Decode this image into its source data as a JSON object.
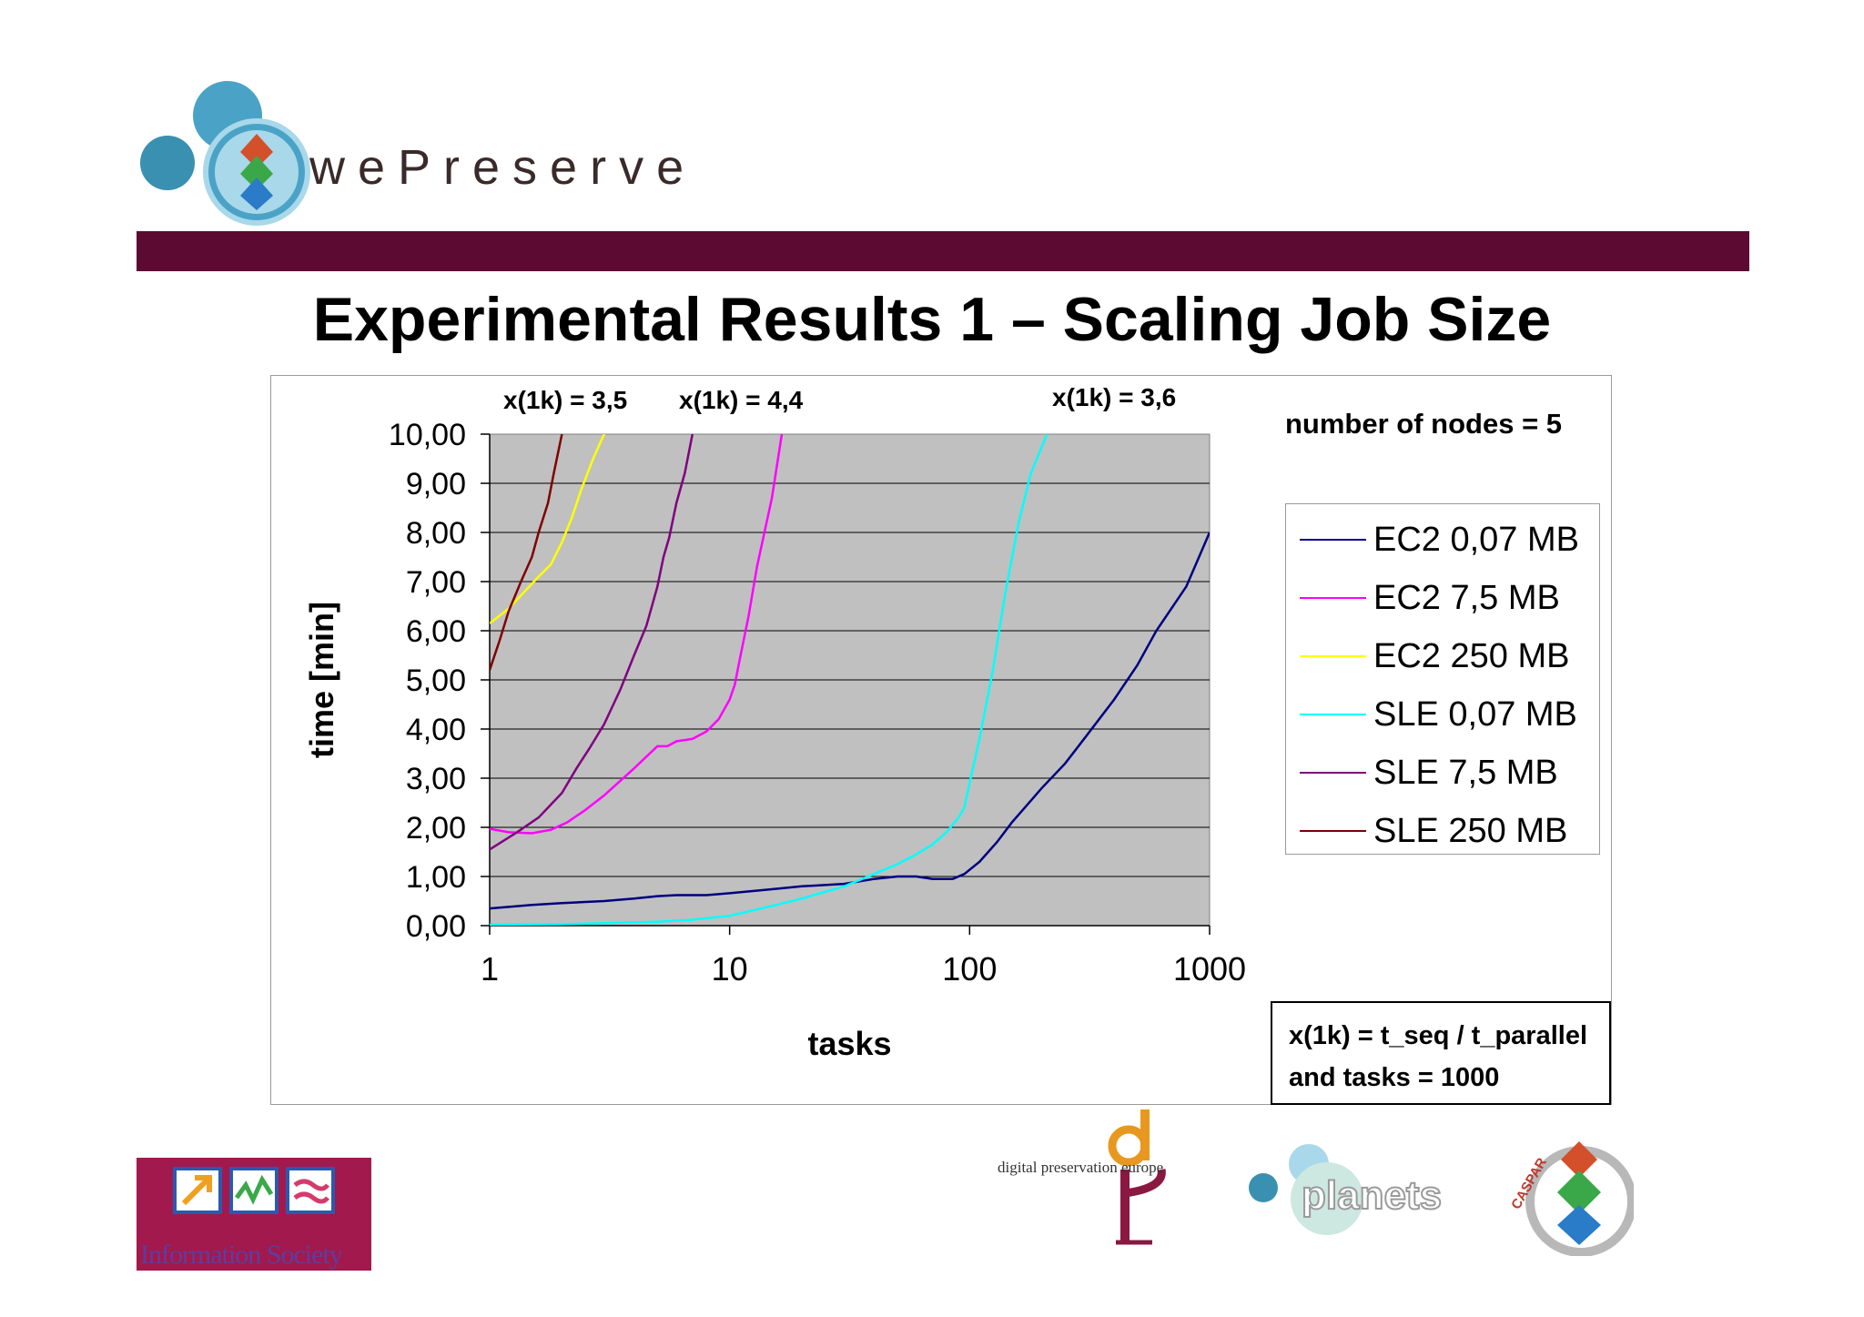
{
  "header": {
    "logo_text": "wePreserve",
    "title": "Experimental Results 1 – Scaling Job Size"
  },
  "annotations": {
    "x1k_a": "x(1k) = 3,5",
    "x1k_b": "x(1k) = 4,4",
    "x1k_c": "x(1k) = 3,6",
    "nodes": "number of nodes = 5",
    "formula_line1": "x(1k) = t_seq / t_parallel",
    "formula_line2": "and tasks = 1000"
  },
  "footer": {
    "eu_text": "Information Society",
    "dpe_text": "digital preservation europe",
    "planets_text": "planets",
    "caspar_text": "CASPAR"
  },
  "colors": {
    "header_bar": "#5c0a32",
    "plot_bg": "#c0c0c0"
  },
  "chart_data": {
    "type": "line",
    "title": "",
    "xlabel": "tasks",
    "ylabel": "time [min]",
    "x_scale": "log",
    "xlim": [
      1,
      1000
    ],
    "ylim": [
      0,
      10
    ],
    "x_ticks": [
      "1",
      "10",
      "100",
      "1000"
    ],
    "y_ticks": [
      "0,00",
      "1,00",
      "2,00",
      "3,00",
      "4,00",
      "5,00",
      "6,00",
      "7,00",
      "8,00",
      "9,00",
      "10,00"
    ],
    "grid": true,
    "legend_position": "right",
    "series": [
      {
        "name": "EC2 0,07 MB",
        "color": "#000080",
        "points": [
          [
            1,
            0.35
          ],
          [
            1.5,
            0.42
          ],
          [
            2,
            0.46
          ],
          [
            3,
            0.5
          ],
          [
            4,
            0.55
          ],
          [
            5,
            0.6
          ],
          [
            6,
            0.62
          ],
          [
            8,
            0.62
          ],
          [
            10,
            0.66
          ],
          [
            15,
            0.74
          ],
          [
            20,
            0.8
          ],
          [
            30,
            0.85
          ],
          [
            40,
            0.95
          ],
          [
            50,
            1.0
          ],
          [
            60,
            1.0
          ],
          [
            70,
            0.95
          ],
          [
            85,
            0.95
          ],
          [
            95,
            1.05
          ],
          [
            110,
            1.3
          ],
          [
            130,
            1.7
          ],
          [
            150,
            2.1
          ],
          [
            200,
            2.8
          ],
          [
            250,
            3.3
          ],
          [
            300,
            3.8
          ],
          [
            400,
            4.6
          ],
          [
            500,
            5.3
          ],
          [
            600,
            6.0
          ],
          [
            800,
            6.9
          ],
          [
            1000,
            8.0
          ]
        ]
      },
      {
        "name": "EC2 7,5 MB",
        "color": "#ff00ff",
        "points": [
          [
            1,
            1.97
          ],
          [
            1.2,
            1.9
          ],
          [
            1.5,
            1.88
          ],
          [
            1.8,
            1.95
          ],
          [
            2.1,
            2.1
          ],
          [
            2.5,
            2.35
          ],
          [
            3,
            2.65
          ],
          [
            4,
            3.2
          ],
          [
            5,
            3.65
          ],
          [
            5.5,
            3.65
          ],
          [
            6,
            3.75
          ],
          [
            7,
            3.8
          ],
          [
            8,
            3.95
          ],
          [
            9,
            4.2
          ],
          [
            10,
            4.6
          ],
          [
            10.5,
            4.9
          ],
          [
            11,
            5.4
          ],
          [
            12,
            6.3
          ],
          [
            13,
            7.3
          ],
          [
            15,
            8.7
          ],
          [
            16.5,
            10
          ]
        ]
      },
      {
        "name": "EC2 250 MB",
        "color": "#ffff00",
        "points": [
          [
            1,
            6.15
          ],
          [
            1.2,
            6.45
          ],
          [
            1.4,
            6.8
          ],
          [
            1.6,
            7.1
          ],
          [
            1.8,
            7.35
          ],
          [
            2.0,
            7.8
          ],
          [
            2.2,
            8.3
          ],
          [
            2.4,
            8.85
          ],
          [
            2.7,
            9.5
          ],
          [
            3.0,
            10
          ]
        ]
      },
      {
        "name": "SLE 0,07 MB",
        "color": "#00ffff",
        "points": [
          [
            1,
            0.02
          ],
          [
            2,
            0.03
          ],
          [
            3,
            0.05
          ],
          [
            5,
            0.08
          ],
          [
            7,
            0.12
          ],
          [
            10,
            0.2
          ],
          [
            15,
            0.4
          ],
          [
            20,
            0.55
          ],
          [
            30,
            0.8
          ],
          [
            40,
            1.05
          ],
          [
            50,
            1.25
          ],
          [
            60,
            1.45
          ],
          [
            70,
            1.65
          ],
          [
            80,
            1.9
          ],
          [
            90,
            2.2
          ],
          [
            95,
            2.4
          ],
          [
            100,
            2.9
          ],
          [
            110,
            3.8
          ],
          [
            125,
            5.2
          ],
          [
            140,
            6.7
          ],
          [
            160,
            8.2
          ],
          [
            180,
            9.2
          ],
          [
            210,
            10
          ]
        ]
      },
      {
        "name": "SLE 7,5 MB",
        "color": "#800080",
        "points": [
          [
            1,
            1.55
          ],
          [
            1.3,
            1.9
          ],
          [
            1.6,
            2.2
          ],
          [
            2,
            2.7
          ],
          [
            2.3,
            3.2
          ],
          [
            2.6,
            3.6
          ],
          [
            3,
            4.1
          ],
          [
            3.5,
            4.8
          ],
          [
            4,
            5.5
          ],
          [
            4.5,
            6.1
          ],
          [
            5,
            6.9
          ],
          [
            5.3,
            7.5
          ],
          [
            5.6,
            7.9
          ],
          [
            6,
            8.6
          ],
          [
            6.5,
            9.2
          ],
          [
            7,
            10
          ]
        ]
      },
      {
        "name": "SLE 250 MB",
        "color": "#800000",
        "points": [
          [
            1,
            5.2
          ],
          [
            1.1,
            5.8
          ],
          [
            1.2,
            6.4
          ],
          [
            1.35,
            7.0
          ],
          [
            1.5,
            7.5
          ],
          [
            1.6,
            8.0
          ],
          [
            1.75,
            8.6
          ],
          [
            1.85,
            9.2
          ],
          [
            2.0,
            10
          ]
        ]
      }
    ]
  }
}
